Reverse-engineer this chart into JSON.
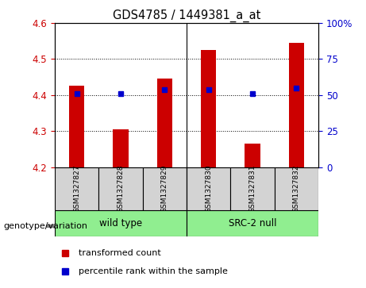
{
  "title": "GDS4785 / 1449381_a_at",
  "samples": [
    "GSM1327827",
    "GSM1327828",
    "GSM1327829",
    "GSM1327830",
    "GSM1327831",
    "GSM1327832"
  ],
  "bar_values": [
    4.425,
    4.305,
    4.445,
    4.525,
    4.265,
    4.545
  ],
  "bar_bottom": 4.2,
  "percentile_values": [
    4.405,
    4.405,
    4.415,
    4.415,
    4.405,
    4.42
  ],
  "ylim": [
    4.2,
    4.6
  ],
  "yticks": [
    4.2,
    4.3,
    4.4,
    4.5,
    4.6
  ],
  "right_yticks": [
    0,
    25,
    50,
    75,
    100
  ],
  "right_ytick_labels": [
    "0",
    "25",
    "50",
    "75",
    "100%"
  ],
  "bar_color": "#cc0000",
  "dot_color": "#0000cc",
  "group1_label": "wild type",
  "group2_label": "SRC-2 null",
  "group_color": "#90ee90",
  "xlabel_label": "genotype/variation",
  "legend_items": [
    "transformed count",
    "percentile rank within the sample"
  ],
  "legend_colors": [
    "#cc0000",
    "#0000cc"
  ],
  "background_color": "#ffffff",
  "tick_label_color_left": "#cc0000",
  "tick_label_color_right": "#0000cc",
  "label_box_color": "#d3d3d3",
  "figwidth": 4.61,
  "figheight": 3.63,
  "dpi": 100
}
